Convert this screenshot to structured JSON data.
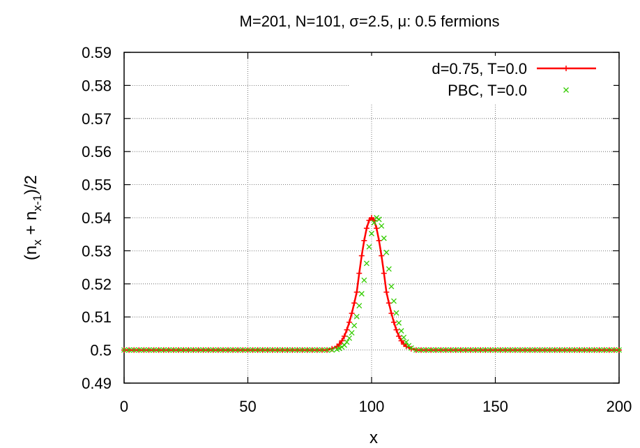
{
  "chart_data": {
    "type": "line",
    "title": "M=201, N=101, σ=2.5, μ: 0.5 fermions",
    "xlabel": "x",
    "ylabel": "(n_x + n_x-1)/2",
    "ylabel_parts": {
      "open": "(n",
      "sub1": "x",
      "mid": " + n",
      "sub2": "x-1",
      "close": ")/2"
    },
    "xlim": [
      0,
      200
    ],
    "ylim": [
      0.49,
      0.59
    ],
    "xticks": [
      0,
      50,
      100,
      150,
      200
    ],
    "xtick_labels": [
      "0",
      "50",
      "100",
      "150",
      "200"
    ],
    "yticks": [
      0.49,
      0.5,
      0.51,
      0.52,
      0.53,
      0.54,
      0.55,
      0.56,
      0.57,
      0.58,
      0.59
    ],
    "ytick_labels": [
      "0.49",
      "0.5",
      "0.51",
      "0.52",
      "0.53",
      "0.54",
      "0.55",
      "0.56",
      "0.57",
      "0.58",
      "0.59"
    ],
    "grid": true,
    "legend_position": "top-right",
    "series": [
      {
        "name": "d=0.75, T=0.0",
        "style": "linespoints",
        "marker": "plus",
        "color": "#ff0000",
        "x": [
          0,
          2,
          4,
          6,
          8,
          10,
          12,
          14,
          16,
          18,
          20,
          22,
          24,
          26,
          28,
          30,
          32,
          34,
          36,
          38,
          40,
          42,
          44,
          46,
          48,
          50,
          52,
          54,
          56,
          58,
          60,
          62,
          64,
          66,
          68,
          70,
          72,
          74,
          76,
          78,
          80,
          82,
          84,
          86,
          87,
          88,
          89,
          90,
          91,
          92,
          93,
          94,
          95,
          96,
          97,
          98,
          99,
          100,
          101,
          102,
          103,
          104,
          105,
          106,
          107,
          108,
          109,
          110,
          111,
          112,
          113,
          114,
          116,
          118,
          120,
          122,
          124,
          126,
          128,
          130,
          132,
          134,
          136,
          138,
          140,
          142,
          144,
          146,
          148,
          150,
          152,
          154,
          156,
          158,
          160,
          162,
          164,
          166,
          168,
          170,
          172,
          174,
          176,
          178,
          180,
          182,
          184,
          186,
          188,
          190,
          192,
          194,
          196,
          198,
          200
        ],
        "y": [
          0.5,
          0.5,
          0.5,
          0.5,
          0.5,
          0.5,
          0.5,
          0.5,
          0.5,
          0.5,
          0.5,
          0.5,
          0.5,
          0.5,
          0.5,
          0.5,
          0.5,
          0.5,
          0.5,
          0.5,
          0.5,
          0.5,
          0.5,
          0.5,
          0.5,
          0.5,
          0.5,
          0.5,
          0.5,
          0.5,
          0.5,
          0.5,
          0.5,
          0.5,
          0.5,
          0.5,
          0.5,
          0.5,
          0.5,
          0.5,
          0.5,
          0.5,
          0.5004,
          0.5011,
          0.5018,
          0.5028,
          0.5042,
          0.5061,
          0.5084,
          0.5111,
          0.5142,
          0.5175,
          0.5232,
          0.5285,
          0.5331,
          0.5368,
          0.5392,
          0.54,
          0.5392,
          0.5368,
          0.5331,
          0.5285,
          0.5232,
          0.5175,
          0.5142,
          0.5111,
          0.5084,
          0.5061,
          0.5042,
          0.5028,
          0.5018,
          0.5011,
          0.5004,
          0.5,
          0.5,
          0.5,
          0.5,
          0.5,
          0.5,
          0.5,
          0.5,
          0.5,
          0.5,
          0.5,
          0.5,
          0.5,
          0.5,
          0.5,
          0.5,
          0.5,
          0.5,
          0.5,
          0.5,
          0.5,
          0.5,
          0.5,
          0.5,
          0.5,
          0.5,
          0.5,
          0.5,
          0.5,
          0.5,
          0.5,
          0.5,
          0.5,
          0.5,
          0.5,
          0.5,
          0.5,
          0.5,
          0.5,
          0.5,
          0.5,
          0.5
        ]
      },
      {
        "name": "PBC, T=0.0",
        "style": "points",
        "marker": "cross",
        "color": "#33cc00",
        "x": [
          0,
          2,
          4,
          6,
          8,
          10,
          12,
          14,
          16,
          18,
          20,
          22,
          24,
          26,
          28,
          30,
          32,
          34,
          36,
          38,
          40,
          42,
          44,
          46,
          48,
          50,
          52,
          54,
          56,
          58,
          60,
          62,
          64,
          66,
          68,
          70,
          72,
          74,
          76,
          78,
          80,
          82,
          84,
          86,
          87,
          88,
          89,
          90,
          91,
          92,
          93,
          94,
          95,
          96,
          97,
          98,
          99,
          100,
          101,
          102,
          103,
          104,
          105,
          106,
          107,
          108,
          109,
          110,
          111,
          112,
          113,
          114,
          115,
          116,
          118,
          120,
          122,
          124,
          126,
          128,
          130,
          132,
          134,
          136,
          138,
          140,
          142,
          144,
          146,
          148,
          150,
          152,
          154,
          156,
          158,
          160,
          162,
          164,
          166,
          168,
          170,
          172,
          174,
          176,
          178,
          180,
          182,
          184,
          186,
          188,
          190,
          192,
          194,
          196,
          198,
          200
        ],
        "y": [
          0.5,
          0.5,
          0.5,
          0.5,
          0.5,
          0.5,
          0.5,
          0.5,
          0.5,
          0.5,
          0.5,
          0.5,
          0.5,
          0.5,
          0.5,
          0.5,
          0.5,
          0.5,
          0.5,
          0.5,
          0.5,
          0.5,
          0.5,
          0.5,
          0.5,
          0.5,
          0.5,
          0.5,
          0.5,
          0.5,
          0.5,
          0.5,
          0.5,
          0.5,
          0.5,
          0.5,
          0.5,
          0.5,
          0.5,
          0.5,
          0.5,
          0.5,
          0.5,
          0.5002,
          0.5005,
          0.5009,
          0.5015,
          0.5024,
          0.5036,
          0.5052,
          0.5074,
          0.5101,
          0.5134,
          0.517,
          0.5211,
          0.5262,
          0.5312,
          0.5352,
          0.5385,
          0.54,
          0.5395,
          0.5375,
          0.5338,
          0.5295,
          0.5245,
          0.5192,
          0.5148,
          0.5112,
          0.5082,
          0.5058,
          0.5038,
          0.5024,
          0.5013,
          0.5006,
          0.5,
          0.5,
          0.5,
          0.5,
          0.5,
          0.5,
          0.5,
          0.5,
          0.5,
          0.5,
          0.5,
          0.5,
          0.5,
          0.5,
          0.5,
          0.5,
          0.5,
          0.5,
          0.5,
          0.5,
          0.5,
          0.5,
          0.5,
          0.5,
          0.5,
          0.5,
          0.5,
          0.5,
          0.5,
          0.5,
          0.5,
          0.5,
          0.5,
          0.5,
          0.5,
          0.5,
          0.5,
          0.5,
          0.5,
          0.5,
          0.5,
          0.5
        ]
      }
    ]
  }
}
